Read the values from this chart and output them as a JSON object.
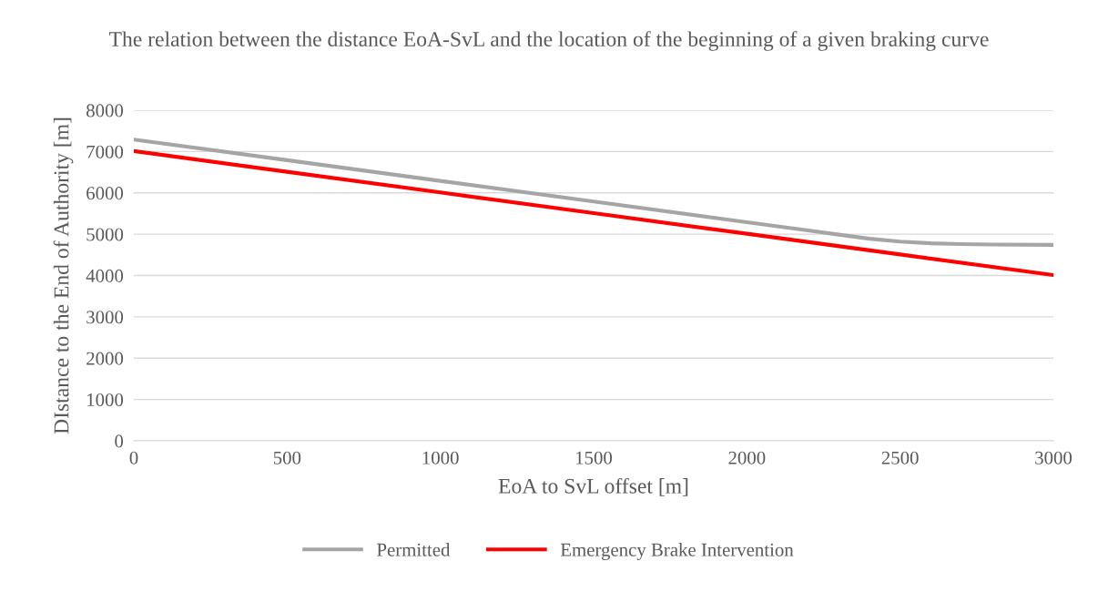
{
  "chart_data": {
    "type": "line",
    "title": "The relation between the distance EoA-SvL and the location of the beginning of a given braking curve",
    "xlabel": "EoA to SvL offset [m]",
    "ylabel": "DIstance to the End of Authority [m]",
    "series": [
      {
        "name": "Permitted",
        "color": "#a5a5a5",
        "x": [
          0,
          500,
          1000,
          1500,
          2000,
          2200,
          2300,
          2400,
          2500,
          2600,
          2700,
          2800,
          3000
        ],
        "values": [
          7290,
          6790,
          6290,
          5790,
          5290,
          5090,
          4990,
          4890,
          4820,
          4780,
          4760,
          4750,
          4740
        ]
      },
      {
        "name": "Emergency Brake Intervention",
        "color": "#ff0000",
        "x": [
          0,
          500,
          1000,
          1500,
          2000,
          2500,
          3000
        ],
        "values": [
          7010,
          6510,
          6010,
          5510,
          5010,
          4510,
          4010
        ]
      }
    ],
    "xlim": [
      0,
      3000
    ],
    "xticks": [
      0,
      500,
      1000,
      1500,
      2000,
      2500,
      3000
    ],
    "ylim": [
      0,
      8000
    ],
    "yticks": [
      0,
      1000,
      2000,
      3000,
      4000,
      5000,
      6000,
      7000,
      8000
    ],
    "grid": "y",
    "legend": "bottom",
    "marker": "none",
    "line_style": "solid"
  }
}
